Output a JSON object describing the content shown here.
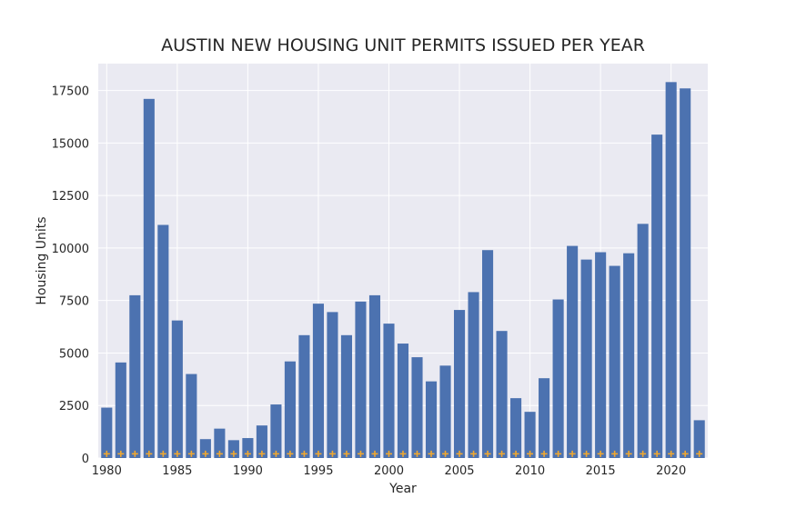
{
  "chart_data": {
    "type": "bar",
    "title": "AUSTIN NEW HOUSING UNIT PERMITS ISSUED PER YEAR",
    "xlabel": "Year",
    "ylabel": "Housing Units",
    "x": [
      1980,
      1981,
      1982,
      1983,
      1984,
      1985,
      1986,
      1987,
      1988,
      1989,
      1990,
      1991,
      1992,
      1993,
      1994,
      1995,
      1996,
      1997,
      1998,
      1999,
      2000,
      2001,
      2002,
      2003,
      2004,
      2005,
      2006,
      2007,
      2008,
      2009,
      2010,
      2011,
      2012,
      2013,
      2014,
      2015,
      2016,
      2017,
      2018,
      2019,
      2020,
      2021,
      2022
    ],
    "values": [
      2400,
      4550,
      7750,
      17100,
      11100,
      6550,
      4000,
      900,
      1400,
      850,
      950,
      1550,
      2550,
      4600,
      5850,
      7350,
      6950,
      5850,
      7450,
      7750,
      6400,
      5450,
      4800,
      3650,
      4400,
      7050,
      7900,
      9900,
      6050,
      2850,
      2200,
      3800,
      7550,
      10100,
      9450,
      9800,
      9150,
      9750,
      11150,
      15400,
      17900,
      17600,
      1800
    ],
    "marker_value": 200,
    "xlim": [
      1979.4,
      2022.6
    ],
    "ylim": [
      0,
      18780
    ],
    "xticks": [
      1980,
      1985,
      1990,
      1995,
      2000,
      2005,
      2010,
      2015,
      2020
    ],
    "yticks": [
      0,
      2500,
      5000,
      7500,
      10000,
      12500,
      15000,
      17500
    ],
    "grid": true,
    "colors": {
      "bar": "#4c72b0",
      "marker": "#f0a830",
      "plot_background": "#eaeaf2",
      "grid": "#ffffff"
    }
  }
}
